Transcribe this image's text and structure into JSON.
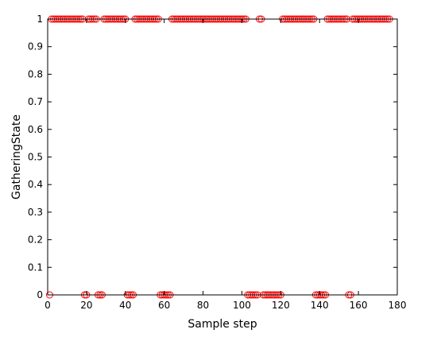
{
  "chart_data": {
    "type": "scatter",
    "title": "",
    "xlabel": "Sample step",
    "ylabel": "GatheringState",
    "xlim": [
      0,
      180
    ],
    "ylim": [
      0,
      1
    ],
    "x_ticks": [
      0,
      20,
      40,
      60,
      80,
      100,
      120,
      140,
      160,
      180
    ],
    "y_ticks": [
      0,
      0.1,
      0.2,
      0.3,
      0.4,
      0.5,
      0.6,
      0.7,
      0.8,
      0.9,
      1
    ],
    "grid": false,
    "legend": "none",
    "marker": "circle",
    "marker_color": "#ff0000",
    "series": [
      {
        "x": [
          1,
          2,
          3,
          4,
          5,
          6,
          7,
          8,
          9,
          10,
          11,
          12,
          13,
          14,
          15,
          16,
          17,
          18,
          19,
          20,
          21,
          22,
          23,
          24,
          25,
          26,
          27,
          28,
          29,
          30,
          31,
          32,
          33,
          34,
          35,
          36,
          37,
          38,
          39,
          40,
          41,
          42,
          43,
          44,
          45,
          46,
          47,
          48,
          49,
          50,
          51,
          52,
          53,
          54,
          55,
          56,
          57,
          58,
          59,
          60,
          61,
          62,
          63,
          64,
          65,
          66,
          67,
          68,
          69,
          70,
          71,
          72,
          73,
          74,
          75,
          76,
          77,
          78,
          79,
          80,
          81,
          82,
          83,
          84,
          85,
          86,
          87,
          88,
          89,
          90,
          91,
          92,
          93,
          94,
          95,
          96,
          97,
          98,
          99,
          100,
          101,
          102,
          103,
          104,
          105,
          106,
          107,
          108,
          109,
          110,
          111,
          112,
          113,
          114,
          115,
          116,
          117,
          118,
          119,
          120,
          121,
          122,
          123,
          124,
          125,
          126,
          127,
          128,
          129,
          130,
          131,
          132,
          133,
          134,
          135,
          136,
          137,
          138,
          139,
          140,
          141,
          142,
          143,
          144,
          145,
          146,
          147,
          148,
          149,
          150,
          151,
          152,
          153,
          154,
          155,
          156,
          157,
          158,
          159,
          160,
          161,
          162,
          163,
          164,
          165,
          166,
          167,
          168,
          169,
          170,
          171,
          172,
          173,
          174,
          175,
          176
        ],
        "y": [
          0,
          1,
          1,
          1,
          1,
          1,
          1,
          1,
          1,
          1,
          1,
          1,
          1,
          1,
          1,
          1,
          1,
          1,
          0,
          0,
          1,
          1,
          1,
          1,
          1,
          0,
          0,
          0,
          1,
          1,
          1,
          1,
          1,
          1,
          1,
          1,
          1,
          1,
          1,
          1,
          0,
          0,
          0,
          0,
          1,
          1,
          1,
          1,
          1,
          1,
          1,
          1,
          1,
          1,
          1,
          1,
          1,
          0,
          0,
          0,
          0,
          0,
          0,
          1,
          1,
          1,
          1,
          1,
          1,
          1,
          1,
          1,
          1,
          1,
          1,
          1,
          1,
          1,
          1,
          1,
          1,
          1,
          1,
          1,
          1,
          1,
          1,
          1,
          1,
          1,
          1,
          1,
          1,
          1,
          1,
          1,
          1,
          1,
          1,
          1,
          1,
          1,
          0,
          0,
          0,
          0,
          0,
          0,
          1,
          1,
          0,
          0,
          0,
          0,
          0,
          0,
          0,
          0,
          0,
          0,
          1,
          1,
          1,
          1,
          1,
          1,
          1,
          1,
          1,
          1,
          1,
          1,
          1,
          1,
          1,
          1,
          1,
          0,
          0,
          0,
          0,
          0,
          0,
          1,
          1,
          1,
          1,
          1,
          1,
          1,
          1,
          1,
          1,
          1,
          0,
          0,
          1,
          1,
          1,
          1,
          1,
          1,
          1,
          1,
          1,
          1,
          1,
          1,
          1,
          1,
          1,
          1,
          1,
          1,
          1,
          1
        ]
      }
    ]
  }
}
